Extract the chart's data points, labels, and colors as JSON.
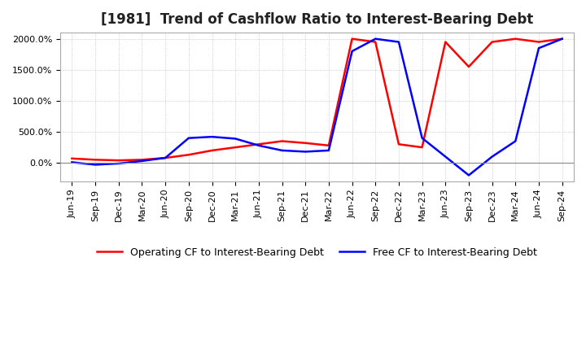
{
  "title": "[1981]  Trend of Cashflow Ratio to Interest-Bearing Debt",
  "x_labels": [
    "Jun-19",
    "Sep-19",
    "Dec-19",
    "Mar-20",
    "Jun-20",
    "Sep-20",
    "Dec-20",
    "Mar-21",
    "Jun-21",
    "Sep-21",
    "Dec-21",
    "Mar-22",
    "Jun-22",
    "Sep-22",
    "Dec-22",
    "Mar-23",
    "Jun-23",
    "Sep-23",
    "Dec-23",
    "Mar-24",
    "Jun-24",
    "Sep-24"
  ],
  "operating_cf": [
    70,
    50,
    40,
    50,
    80,
    130,
    200,
    250,
    300,
    350,
    320,
    280,
    2000,
    1950,
    300,
    250,
    1950,
    1550,
    1950,
    2000,
    1950,
    2000
  ],
  "free_cf": [
    10,
    -30,
    -10,
    30,
    80,
    400,
    420,
    390,
    280,
    200,
    180,
    200,
    1800,
    2000,
    1950,
    400,
    100,
    -200,
    100,
    350,
    1850,
    2000
  ],
  "ylim": [
    -300,
    2100
  ],
  "yticks": [
    0,
    500,
    1000,
    1500,
    2000
  ],
  "op_color": "#ff0000",
  "free_color": "#0000ff",
  "legend_op": "Operating CF to Interest-Bearing Debt",
  "legend_free": "Free CF to Interest-Bearing Debt",
  "bg_color": "#ffffff",
  "grid_color": "#b0b0b0",
  "title_fontsize": 12,
  "tick_fontsize": 8,
  "legend_fontsize": 9,
  "line_width": 1.8
}
